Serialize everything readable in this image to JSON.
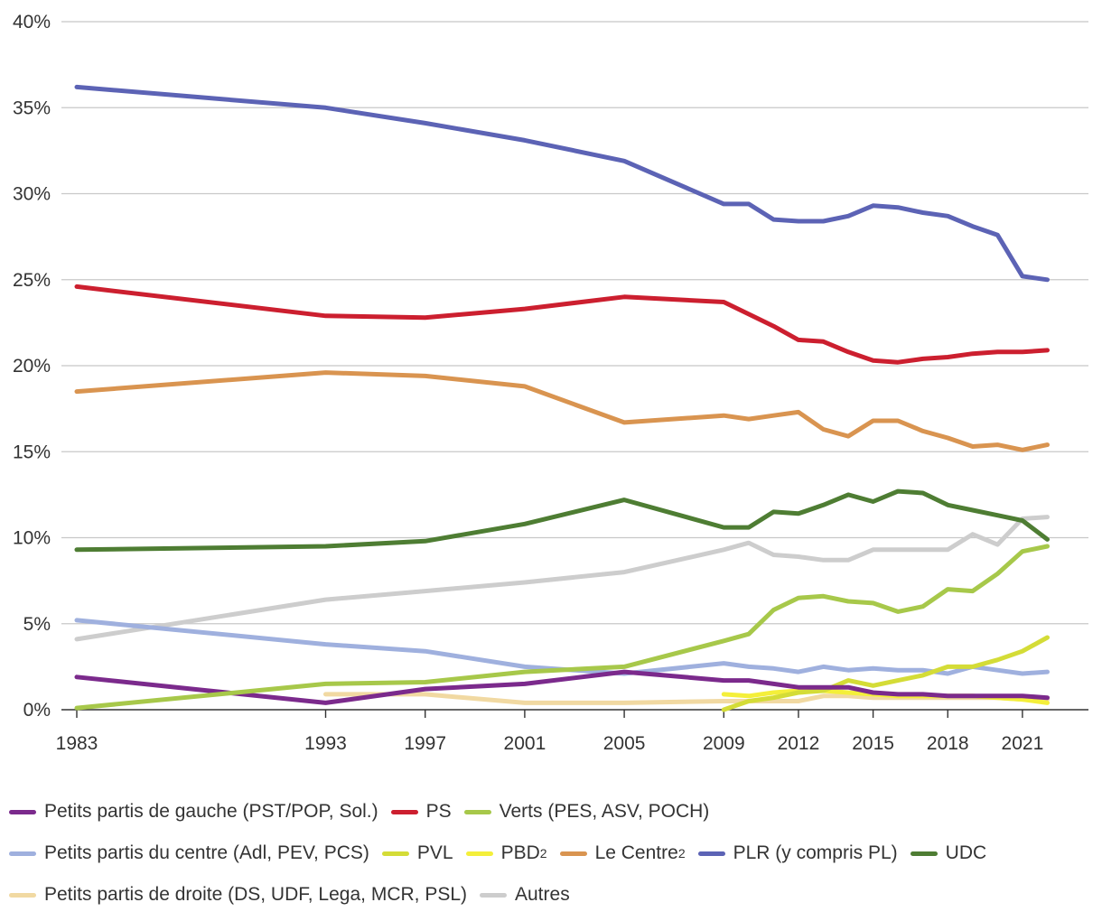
{
  "chart_data": {
    "type": "line",
    "title": "",
    "xlabel": "",
    "ylabel": "",
    "ylim": [
      0,
      40
    ],
    "ytick_values": [
      0,
      5,
      10,
      15,
      20,
      25,
      30,
      35,
      40
    ],
    "ytick_labels": [
      "0%",
      "5%",
      "10%",
      "15%",
      "20%",
      "25%",
      "30%",
      "35%",
      "40%"
    ],
    "xlim": [
      1983,
      2023
    ],
    "xtick_values": [
      1983,
      1993,
      1997,
      2001,
      2005,
      2009,
      2012,
      2015,
      2018,
      2021
    ],
    "xtick_labels": [
      "1983",
      "1993",
      "1997",
      "2001",
      "2005",
      "2009",
      "2012",
      "2015",
      "2018",
      "2021"
    ],
    "grid": true,
    "legend_position": "bottom",
    "series": [
      {
        "name": "Petits partis de droite (DS, UDF, Lega, MCR, PSL)",
        "color": "#f1d9a2",
        "x": [
          1993,
          1997,
          2001,
          2005,
          2009,
          2010,
          2011,
          2012,
          2013,
          2014,
          2015,
          2016,
          2017,
          2018,
          2019,
          2020,
          2021,
          2022
        ],
        "y": [
          0.9,
          0.9,
          0.4,
          0.4,
          0.5,
          0.5,
          0.5,
          0.5,
          0.8,
          0.8,
          0.7,
          0.7,
          0.7,
          0.7,
          0.7,
          0.7,
          0.6,
          0.6
        ]
      },
      {
        "name": "Autres",
        "color": "#cdcdcd",
        "x": [
          1983,
          1993,
          1997,
          2001,
          2005,
          2009,
          2010,
          2011,
          2012,
          2013,
          2014,
          2015,
          2016,
          2017,
          2018,
          2019,
          2020,
          2021,
          2022
        ],
        "y": [
          4.1,
          6.4,
          6.9,
          7.4,
          8.0,
          9.3,
          9.7,
          9.0,
          8.9,
          8.7,
          8.7,
          9.3,
          9.3,
          9.3,
          9.3,
          10.2,
          9.6,
          11.1,
          11.2
        ]
      },
      {
        "name": "Petits partis du centre (Adl, PEV, PCS)",
        "color": "#9fb0de",
        "x": [
          1983,
          1993,
          1997,
          2001,
          2005,
          2009,
          2010,
          2011,
          2012,
          2013,
          2014,
          2015,
          2016,
          2017,
          2018,
          2019,
          2020,
          2021,
          2022
        ],
        "y": [
          5.2,
          3.8,
          3.4,
          2.5,
          2.1,
          2.7,
          2.5,
          2.4,
          2.2,
          2.5,
          2.3,
          2.4,
          2.3,
          2.3,
          2.1,
          2.5,
          2.3,
          2.1,
          2.2
        ]
      },
      {
        "name": "PBD²",
        "color": "#f4ef3a",
        "x": [
          2009,
          2010,
          2011,
          2012,
          2013,
          2014,
          2015,
          2016,
          2017,
          2018,
          2019,
          2020,
          2021,
          2022
        ],
        "y": [
          0.9,
          0.8,
          1.0,
          1.1,
          1.1,
          1.0,
          0.9,
          0.8,
          0.8,
          0.8,
          0.8,
          0.7,
          0.6,
          0.4
        ]
      },
      {
        "name": "PVL",
        "color": "#d4dc37",
        "x": [
          2009,
          2010,
          2011,
          2012,
          2013,
          2014,
          2015,
          2016,
          2017,
          2018,
          2019,
          2020,
          2021,
          2022
        ],
        "y": [
          0.0,
          0.5,
          0.7,
          1.0,
          1.1,
          1.7,
          1.4,
          1.7,
          2.0,
          2.5,
          2.5,
          2.9,
          3.4,
          4.2
        ]
      },
      {
        "name": "Petits partis de gauche (PST/POP, Sol.)",
        "color": "#7b2a8c",
        "x": [
          1983,
          1993,
          1997,
          2001,
          2005,
          2009,
          2010,
          2011,
          2012,
          2013,
          2014,
          2015,
          2016,
          2017,
          2018,
          2019,
          2020,
          2021,
          2022
        ],
        "y": [
          1.9,
          0.4,
          1.2,
          1.5,
          2.2,
          1.7,
          1.7,
          1.5,
          1.3,
          1.3,
          1.3,
          1.0,
          0.9,
          0.9,
          0.8,
          0.8,
          0.8,
          0.8,
          0.7
        ]
      },
      {
        "name": "Verts (PES, ASV, POCH)",
        "color": "#a7c84a",
        "x": [
          1983,
          1993,
          1997,
          2001,
          2005,
          2009,
          2010,
          2011,
          2012,
          2013,
          2014,
          2015,
          2016,
          2017,
          2018,
          2019,
          2020,
          2021,
          2022
        ],
        "y": [
          0.1,
          1.5,
          1.6,
          2.2,
          2.5,
          4.0,
          4.4,
          5.8,
          6.5,
          6.6,
          6.3,
          6.2,
          5.7,
          6.0,
          7.0,
          6.9,
          7.9,
          9.2,
          9.5
        ]
      },
      {
        "name": "UDC",
        "color": "#4e7d33",
        "x": [
          1983,
          1993,
          1997,
          2001,
          2005,
          2009,
          2010,
          2011,
          2012,
          2013,
          2014,
          2015,
          2016,
          2017,
          2018,
          2019,
          2020,
          2021,
          2022
        ],
        "y": [
          9.3,
          9.5,
          9.8,
          10.8,
          12.2,
          10.6,
          10.6,
          11.5,
          11.4,
          11.9,
          12.5,
          12.1,
          12.7,
          12.6,
          11.9,
          11.6,
          11.3,
          11.0,
          9.9
        ]
      },
      {
        "name": "Le Centre²",
        "color": "#d99450",
        "x": [
          1983,
          1993,
          1997,
          2001,
          2005,
          2009,
          2010,
          2011,
          2012,
          2013,
          2014,
          2015,
          2016,
          2017,
          2018,
          2019,
          2020,
          2021,
          2022
        ],
        "y": [
          18.5,
          19.6,
          19.4,
          18.8,
          16.7,
          17.1,
          16.9,
          17.1,
          17.3,
          16.3,
          15.9,
          16.8,
          16.8,
          16.2,
          15.8,
          15.3,
          15.4,
          15.1,
          15.4
        ]
      },
      {
        "name": "PS",
        "color": "#cc1f2f",
        "x": [
          1983,
          1993,
          1997,
          2001,
          2005,
          2009,
          2010,
          2011,
          2012,
          2013,
          2014,
          2015,
          2016,
          2017,
          2018,
          2019,
          2020,
          2021,
          2022
        ],
        "y": [
          24.6,
          22.9,
          22.8,
          23.3,
          24.0,
          23.7,
          23.0,
          22.3,
          21.5,
          21.4,
          20.8,
          20.3,
          20.2,
          20.4,
          20.5,
          20.7,
          20.8,
          20.8,
          20.9
        ]
      },
      {
        "name": "PLR (y compris PL)",
        "color": "#5c63b5",
        "x": [
          1983,
          1993,
          1997,
          2001,
          2005,
          2009,
          2010,
          2011,
          2012,
          2013,
          2014,
          2015,
          2016,
          2017,
          2018,
          2019,
          2020,
          2021,
          2022
        ],
        "y": [
          36.2,
          35.0,
          34.1,
          33.1,
          31.9,
          29.4,
          29.4,
          28.5,
          28.4,
          28.4,
          28.7,
          29.3,
          29.2,
          28.9,
          28.7,
          28.1,
          27.6,
          25.2,
          25.0
        ]
      }
    ]
  },
  "legend": {
    "rows": [
      [
        {
          "key": "gauche",
          "label": "Petits partis de gauche (PST/POP, Sol.)",
          "sup": "",
          "color": "#7b2a8c"
        },
        {
          "key": "ps",
          "label": "PS",
          "sup": "",
          "color": "#cc1f2f"
        },
        {
          "key": "verts",
          "label": "Verts (PES, ASV, POCH)",
          "sup": "",
          "color": "#a7c84a"
        }
      ],
      [
        {
          "key": "centre",
          "label": "Petits partis du centre (Adl, PEV, PCS)",
          "sup": "",
          "color": "#9fb0de"
        },
        {
          "key": "pvl",
          "label": "PVL",
          "sup": "",
          "color": "#d4dc37"
        },
        {
          "key": "pbd",
          "label": "PBD",
          "sup": "2",
          "color": "#f4ef3a"
        },
        {
          "key": "lecentre",
          "label": "Le Centre",
          "sup": "2",
          "color": "#d99450"
        },
        {
          "key": "plr",
          "label": "PLR (y compris PL)",
          "sup": "",
          "color": "#5c63b5"
        },
        {
          "key": "udc",
          "label": "UDC",
          "sup": "",
          "color": "#4e7d33"
        }
      ],
      [
        {
          "key": "droite",
          "label": "Petits partis de droite (DS, UDF, Lega, MCR, PSL)",
          "sup": "",
          "color": "#f1d9a2"
        },
        {
          "key": "autres",
          "label": "Autres",
          "sup": "",
          "color": "#cdcdcd"
        }
      ]
    ]
  }
}
